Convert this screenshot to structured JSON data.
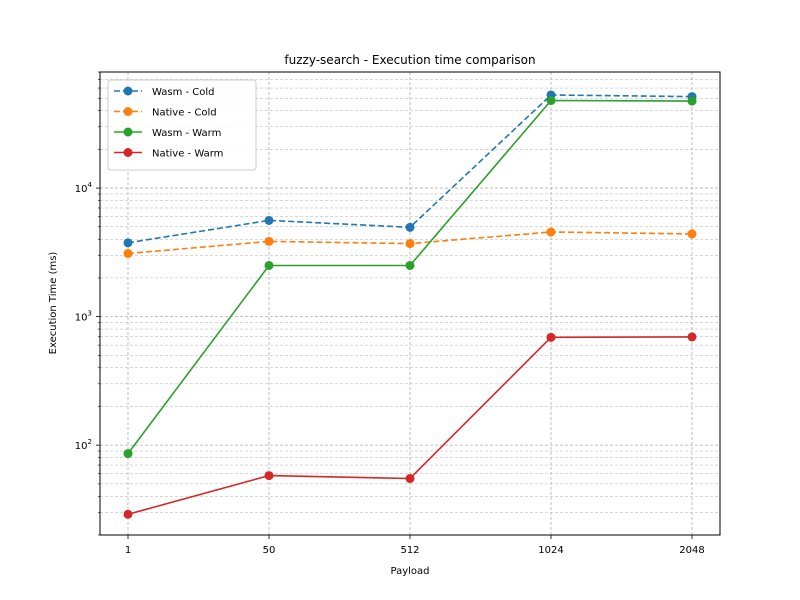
{
  "chart_data": {
    "type": "line",
    "title": "fuzzy-search - Execution time comparison",
    "xlabel": "Payload",
    "ylabel": "Execution Time (ms)",
    "categories": [
      "1",
      "50",
      "512",
      "1024",
      "2048"
    ],
    "yscale": "log",
    "ylim": [
      20,
      80000
    ],
    "y_tick_labels": [
      {
        "value": 100,
        "mantissa": "10",
        "exp": "2"
      },
      {
        "value": 1000,
        "mantissa": "10",
        "exp": "3"
      },
      {
        "value": 10000,
        "mantissa": "10",
        "exp": "4"
      }
    ],
    "grid": true,
    "legend_position": "upper-left",
    "series": [
      {
        "name": "Wasm - Cold",
        "color": "#1f77b4",
        "dashed": true,
        "values": [
          3750,
          5600,
          4950,
          53000,
          51500
        ]
      },
      {
        "name": "Native - Cold",
        "color": "#ff7f0e",
        "dashed": true,
        "values": [
          3100,
          3850,
          3700,
          4550,
          4400
        ]
      },
      {
        "name": "Wasm - Warm",
        "color": "#2ca02c",
        "dashed": false,
        "values": [
          86,
          2500,
          2500,
          48000,
          47500
        ]
      },
      {
        "name": "Native - Warm",
        "color": "#d62728",
        "dashed": false,
        "values": [
          29,
          58,
          55,
          690,
          695
        ]
      }
    ]
  }
}
